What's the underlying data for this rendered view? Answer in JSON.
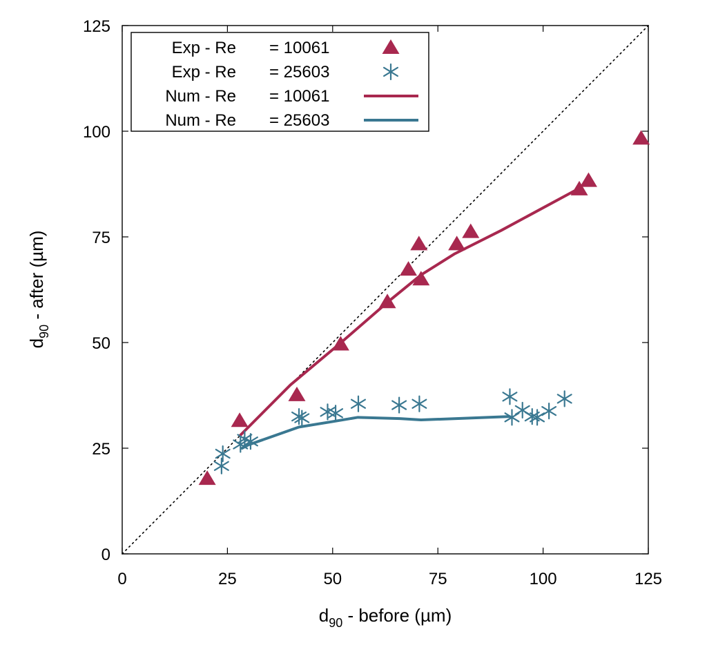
{
  "chart_data": {
    "type": "scatter",
    "xlabel": {
      "main": "d",
      "sub": "90",
      "rest": " - before (µm)"
    },
    "ylabel": {
      "main": "d",
      "sub": "90",
      "rest": " - after (µm)"
    },
    "xlim": [
      0,
      125
    ],
    "ylim": [
      0,
      125
    ],
    "xticks": [
      "0",
      "25",
      "50",
      "75",
      "100",
      "125"
    ],
    "yticks": [
      "0",
      "25",
      "50",
      "75",
      "100",
      "125"
    ],
    "grid": false,
    "legend_position": "top-left",
    "reference_line": {
      "style": "dotted",
      "color": "#000000",
      "x": [
        0,
        125
      ],
      "y": [
        0,
        125
      ]
    },
    "series": [
      {
        "name": "Exp - Re = 10061",
        "legend": {
          "left": "Exp - Re",
          "right": "= 10061"
        },
        "kind": "scatter",
        "marker": "triangle",
        "color": "#a8284f",
        "x": [
          20.2,
          27.9,
          41.5,
          51.9,
          63.0,
          68.0,
          70.5,
          71.0,
          79.5,
          82.8,
          108.6,
          110.8,
          123.3
        ],
        "y": [
          17.8,
          31.5,
          37.6,
          49.6,
          59.6,
          67.3,
          73.3,
          65.0,
          73.3,
          76.2,
          86.3,
          88.3,
          98.3
        ]
      },
      {
        "name": "Exp - Re = 25603",
        "legend": {
          "left": "Exp - Re",
          "right": "= 25603"
        },
        "kind": "scatter",
        "marker": "asterisk",
        "color": "#3a7891",
        "x": [
          23.6,
          23.9,
          28.1,
          29.1,
          30.5,
          42.0,
          42.7,
          48.8,
          50.7,
          56.1,
          65.8,
          70.6,
          92.1,
          92.6,
          95.1,
          97.4,
          98.6,
          101.4,
          105.1
        ],
        "y": [
          20.8,
          23.7,
          25.9,
          27.2,
          26.6,
          32.5,
          32.1,
          33.6,
          33.3,
          35.5,
          35.2,
          35.5,
          37.2,
          32.3,
          34.0,
          32.5,
          32.3,
          33.8,
          36.7
        ]
      },
      {
        "name": "Num - Re = 10061",
        "legend": {
          "left": "Num - Re",
          "right": "= 10061"
        },
        "kind": "line",
        "color": "#a8284f",
        "x": [
          28.0,
          40.0,
          52.0,
          63.0,
          71.0,
          79.0,
          90.0,
          108.6
        ],
        "y": [
          28.0,
          40.0,
          50.0,
          59.5,
          66.0,
          71.0,
          76.5,
          86.5
        ]
      },
      {
        "name": "Num - Re = 25603",
        "legend": {
          "left": "Num - Re",
          "right": "= 25603"
        },
        "kind": "line",
        "color": "#3a7891",
        "x": [
          28.5,
          30.0,
          42.0,
          50.0,
          56.0,
          66.0,
          71.0,
          82.0,
          92.0
        ],
        "y": [
          25.0,
          25.8,
          30.0,
          31.3,
          32.3,
          32.0,
          31.7,
          32.1,
          32.5
        ]
      }
    ]
  }
}
